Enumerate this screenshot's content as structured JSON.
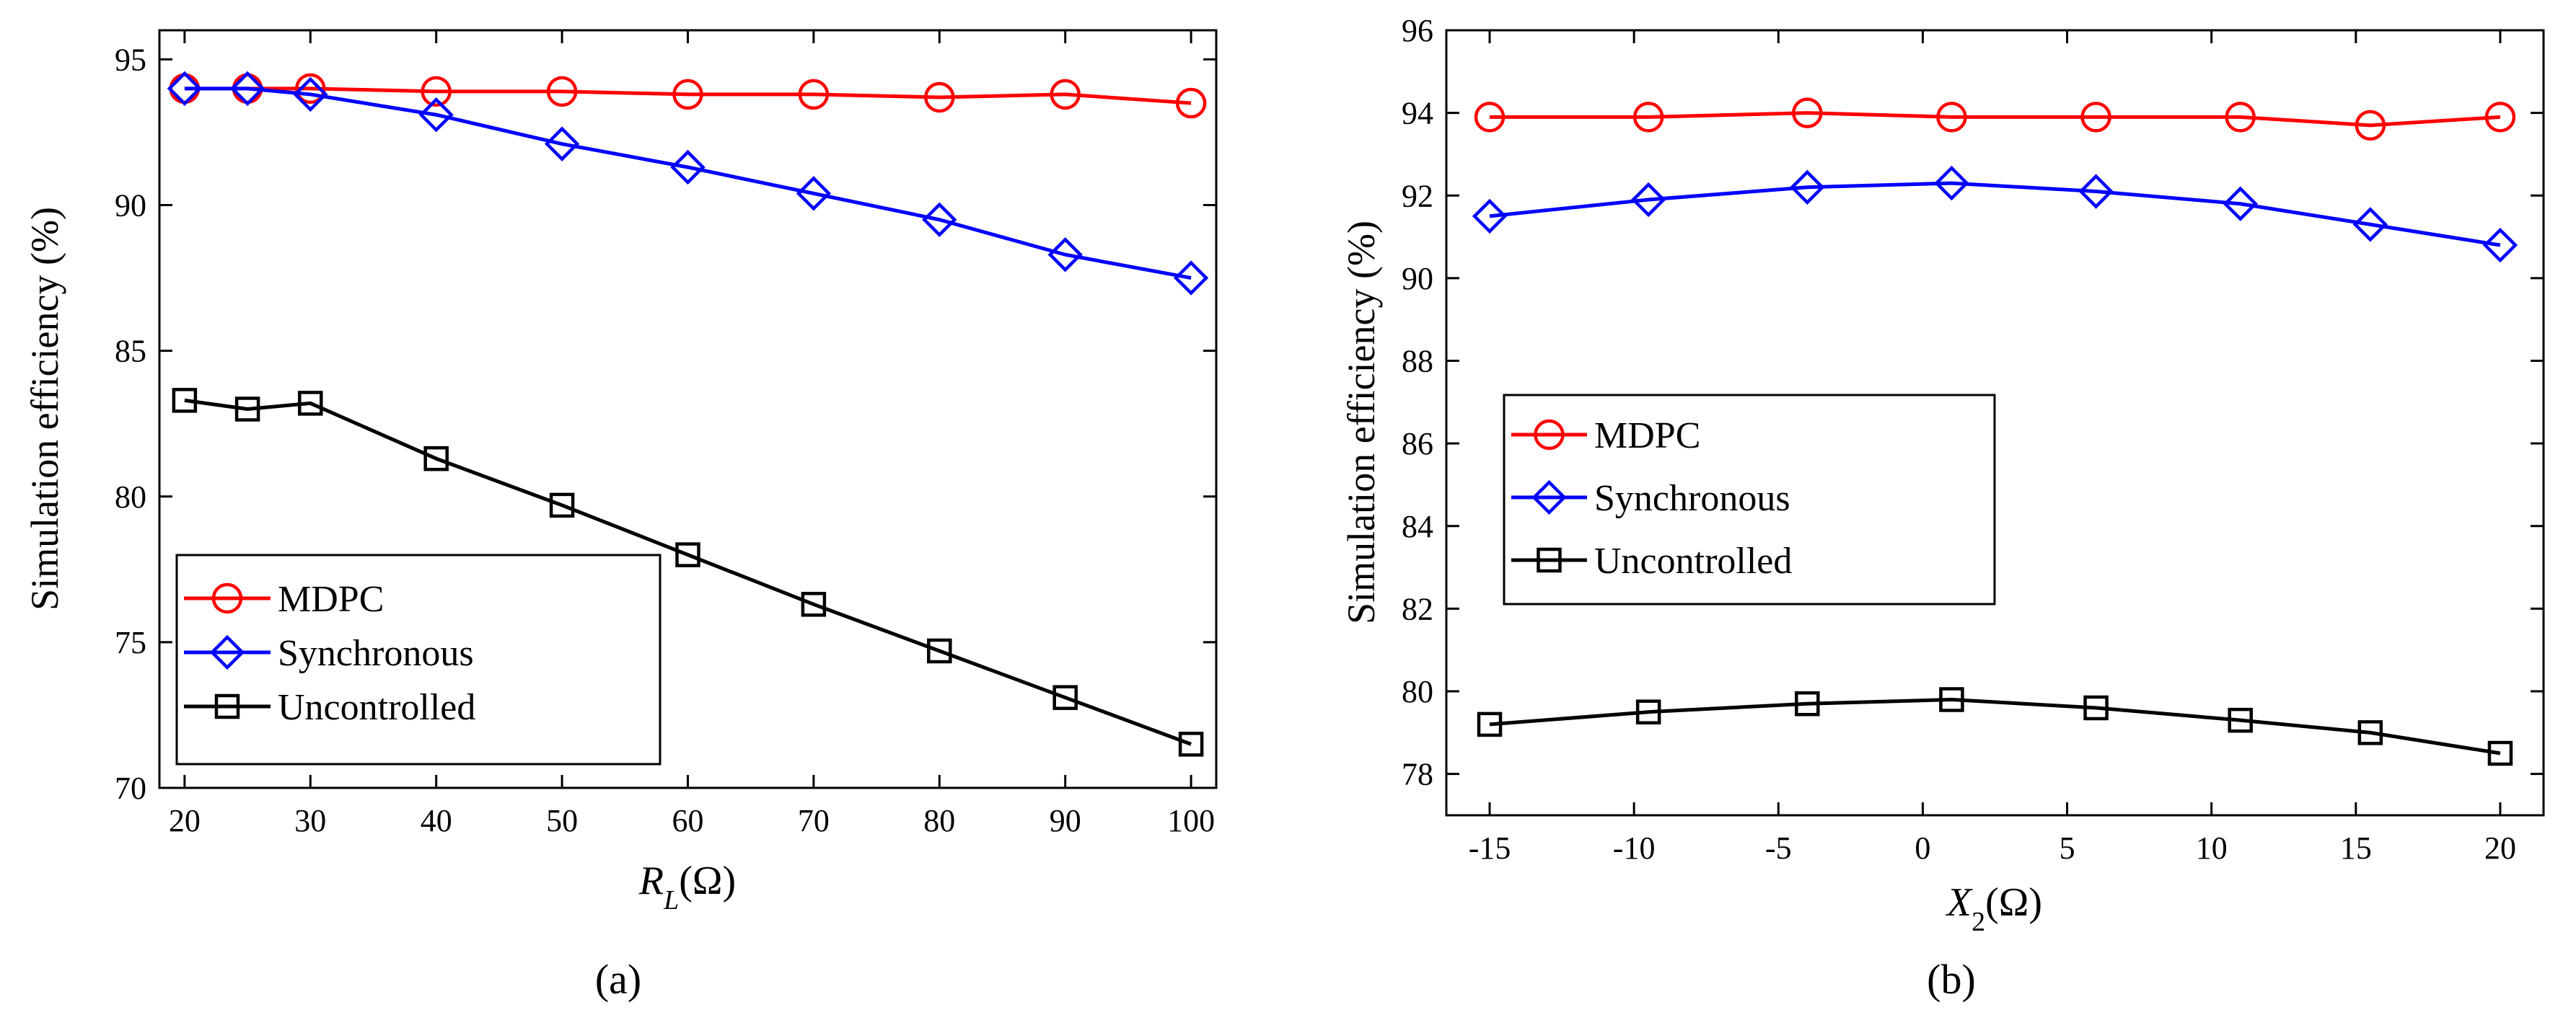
{
  "chart_data": [
    {
      "id": "a",
      "type": "line",
      "caption": "(a)",
      "title": "",
      "xlabel": "R_L(Ω)",
      "xlabel_main": "R",
      "xlabel_sub": "L",
      "xlabel_tail": "(Ω)",
      "ylabel": "Simulation efficiency (%)",
      "xlim": [
        18,
        102
      ],
      "ylim": [
        70,
        96
      ],
      "xticks": [
        20,
        30,
        40,
        50,
        60,
        70,
        80,
        90,
        100
      ],
      "yticks": [
        70,
        75,
        80,
        85,
        90,
        95
      ],
      "x": [
        20,
        25,
        30,
        40,
        50,
        60,
        70,
        80,
        90,
        100
      ],
      "legend_position": "bottom-left",
      "series": [
        {
          "name": "MDPC",
          "color": "#ff0000",
          "marker": "circle",
          "values": [
            94.0,
            94.0,
            94.0,
            93.9,
            93.9,
            93.8,
            93.8,
            93.7,
            93.8,
            93.5
          ]
        },
        {
          "name": "Synchronous",
          "color": "#0000ff",
          "marker": "diamond",
          "values": [
            94.0,
            94.0,
            93.8,
            93.1,
            92.1,
            91.3,
            90.4,
            89.5,
            88.3,
            87.5
          ]
        },
        {
          "name": "Uncontrolled",
          "color": "#000000",
          "marker": "square",
          "values": [
            83.3,
            83.0,
            83.2,
            81.3,
            79.7,
            78.0,
            76.3,
            74.7,
            73.1,
            71.5
          ]
        }
      ]
    },
    {
      "id": "b",
      "type": "line",
      "caption": "(b)",
      "title": "",
      "xlabel": "X_2(Ω)",
      "xlabel_main": "X",
      "xlabel_sub": "2",
      "xlabel_tail": "(Ω)",
      "ylabel": "Simulation efficiency (%)",
      "xlim": [
        -16.5,
        21.5
      ],
      "ylim": [
        77,
        96
      ],
      "xticks": [
        -15,
        -10,
        -5,
        0,
        5,
        10,
        15,
        20
      ],
      "yticks": [
        78,
        80,
        82,
        84,
        86,
        88,
        90,
        92,
        94,
        96
      ],
      "x": [
        -15,
        -9.5,
        -4,
        1,
        6,
        11,
        15.5,
        20
      ],
      "legend_position": "middle-left",
      "series": [
        {
          "name": "MDPC",
          "color": "#ff0000",
          "marker": "circle",
          "values": [
            93.9,
            93.9,
            94.0,
            93.9,
            93.9,
            93.9,
            93.7,
            93.9
          ]
        },
        {
          "name": "Synchronous",
          "color": "#0000ff",
          "marker": "diamond",
          "values": [
            91.5,
            91.9,
            92.2,
            92.3,
            92.1,
            91.8,
            91.3,
            90.8
          ]
        },
        {
          "name": "Uncontrolled",
          "color": "#000000",
          "marker": "square",
          "values": [
            79.2,
            79.5,
            79.7,
            79.8,
            79.6,
            79.3,
            79.0,
            78.5
          ]
        }
      ]
    }
  ]
}
